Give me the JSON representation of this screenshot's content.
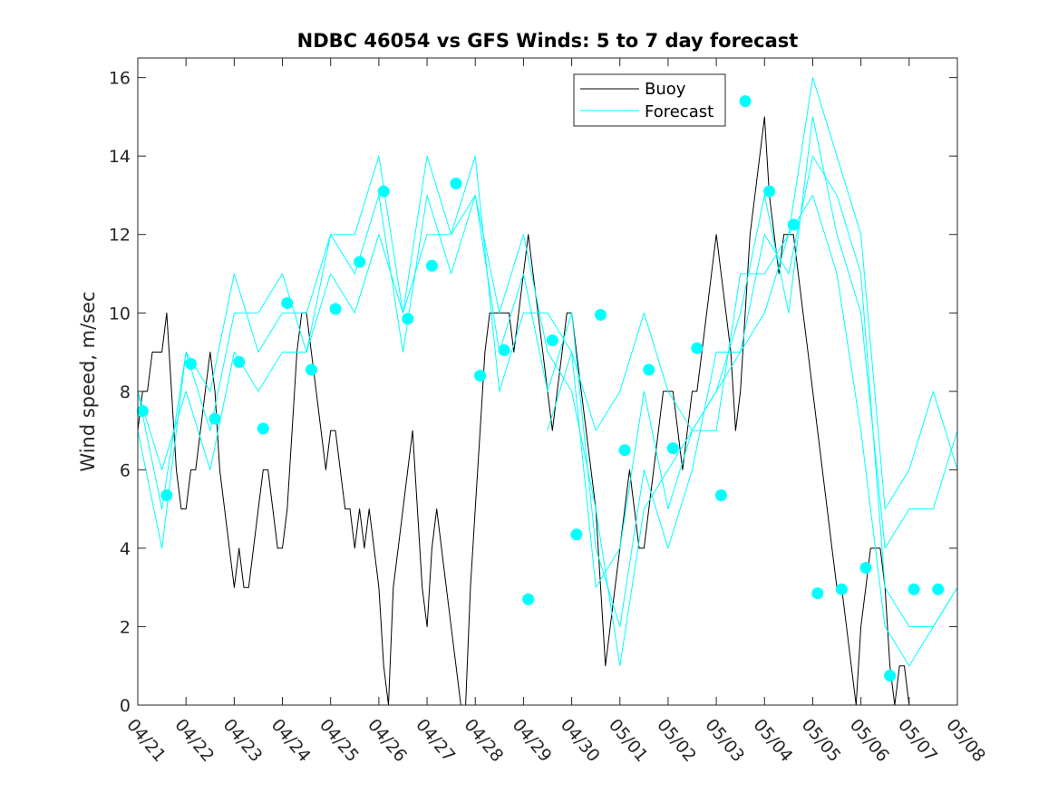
{
  "chart_data": {
    "type": "line",
    "title": "NDBC 46054 vs GFS Winds: 5 to 7 day forecast",
    "xlabel": "",
    "ylabel": "Wind speed, m/sec",
    "xlim": [
      0,
      17
    ],
    "ylim": [
      0,
      16.5
    ],
    "x_ticks": [
      0,
      1,
      2,
      3,
      4,
      5,
      6,
      7,
      8,
      9,
      10,
      11,
      12,
      13,
      14,
      15,
      16,
      17
    ],
    "x_tick_labels": [
      "04/21",
      "04/22",
      "04/23",
      "04/24",
      "04/25",
      "04/26",
      "04/27",
      "04/28",
      "04/29",
      "04/30",
      "05/01",
      "05/02",
      "05/03",
      "05/04",
      "05/05",
      "05/06",
      "05/07",
      "05/08"
    ],
    "y_ticks": [
      0,
      2,
      4,
      6,
      8,
      10,
      12,
      14,
      16
    ],
    "y_tick_labels": [
      "0",
      "2",
      "4",
      "6",
      "8",
      "10",
      "12",
      "14",
      "16"
    ],
    "grid": false,
    "legend": {
      "position": "top-right-inner",
      "entries": [
        "Buoy",
        "Forecast"
      ]
    },
    "colors": {
      "buoy": "#000000",
      "forecast": "#00ffff"
    },
    "series": [
      {
        "name": "Buoy",
        "x": [
          0,
          0.1,
          0.2,
          0.3,
          0.4,
          0.5,
          0.6,
          0.7,
          0.8,
          0.9,
          1.0,
          1.1,
          1.2,
          1.3,
          1.4,
          1.5,
          1.6,
          1.7,
          1.8,
          1.9,
          2.0,
          2.1,
          2.2,
          2.3,
          2.4,
          2.5,
          2.6,
          2.7,
          2.8,
          2.9,
          3.0,
          3.1,
          3.2,
          3.3,
          3.4,
          3.5,
          3.6,
          3.7,
          3.8,
          3.9,
          4.0,
          4.1,
          4.2,
          4.3,
          4.4,
          4.5,
          4.6,
          4.7,
          4.8,
          4.9,
          5.0,
          5.1,
          5.2,
          5.3,
          5.4,
          5.5,
          5.6,
          5.7,
          5.8,
          5.9,
          6.0,
          6.1,
          6.2,
          6.3,
          6.4,
          6.5,
          6.6,
          6.7,
          6.8,
          6.9,
          7.0,
          7.1,
          7.2,
          7.3,
          7.4,
          7.5,
          7.6,
          7.7,
          7.8,
          7.9,
          8.0,
          8.1,
          8.2,
          8.3,
          8.4,
          8.5,
          8.6,
          8.7,
          8.8,
          8.9,
          9.0,
          9.1,
          9.2,
          9.3,
          9.4,
          9.5,
          9.6,
          9.7,
          9.8,
          9.9,
          10.0,
          10.1,
          10.2,
          10.3,
          10.4,
          10.5,
          10.6,
          10.7,
          10.8,
          10.9,
          11.0,
          11.1,
          11.2,
          11.3,
          11.4,
          11.5,
          11.6,
          11.7,
          11.8,
          11.9,
          12.0,
          12.1,
          12.2,
          12.3,
          12.4,
          12.5,
          12.6,
          12.7,
          12.8,
          12.9,
          13.0,
          13.1,
          13.2,
          13.3,
          13.4,
          13.5,
          13.6,
          13.7,
          13.8,
          13.9,
          14.0,
          14.1,
          14.2,
          14.3,
          14.4,
          14.5,
          14.6,
          14.7,
          14.8,
          14.9,
          15.0,
          15.1,
          15.2,
          15.3,
          15.4,
          15.5,
          15.6,
          15.7,
          15.8,
          15.9,
          16.0,
          16.1,
          16.2,
          16.3,
          16.4
        ],
        "values": [
          7,
          8,
          8,
          9,
          9,
          9,
          10,
          8,
          6,
          5,
          5,
          6,
          6,
          7,
          8,
          9,
          8,
          6,
          5,
          4,
          3,
          4,
          3,
          3,
          4,
          5,
          6,
          6,
          5,
          4,
          4,
          5,
          7,
          9,
          10,
          10,
          9,
          8,
          7,
          6,
          7,
          7,
          6,
          5,
          5,
          4,
          5,
          4,
          5,
          4,
          3,
          1,
          0,
          3,
          4,
          5,
          6,
          7,
          5,
          3,
          2,
          4,
          5,
          4,
          3,
          2,
          1,
          0,
          0,
          3,
          5,
          7,
          9,
          10,
          10,
          10,
          10,
          10,
          9,
          10,
          11,
          12,
          11,
          10,
          9,
          8,
          7,
          8,
          9,
          10,
          10,
          9,
          8,
          7,
          6,
          5,
          3,
          1,
          2,
          3,
          4,
          5,
          6,
          5,
          4,
          4,
          5,
          6,
          7,
          8,
          8,
          8,
          7,
          6,
          7,
          8,
          8,
          9,
          10,
          11,
          12,
          11,
          10,
          9,
          7,
          8,
          10,
          12,
          13,
          14,
          15,
          13,
          12,
          11,
          12,
          12,
          12,
          11,
          10,
          9,
          8,
          7,
          6,
          5,
          4,
          3,
          3,
          2,
          1,
          0,
          2,
          3,
          4,
          4,
          4,
          3,
          1,
          0,
          1,
          1,
          0,
          0,
          0,
          0,
          0
        ]
      },
      {
        "name": "Forecast",
        "x": [
          0,
          0.5,
          1.0,
          1.5,
          2.0,
          2.5,
          3.0,
          3.5,
          4.0,
          4.5,
          5.0,
          5.5,
          6.0,
          6.5,
          7.0,
          7.5,
          8.0,
          8.5,
          9.0,
          9.5,
          10.0,
          10.5,
          11.0,
          11.5,
          12.0,
          12.5,
          13.0,
          13.5,
          14.0,
          14.5,
          15.0,
          15.5,
          16.0,
          16.5,
          17.0
        ],
        "values": [
          8,
          5,
          9,
          7,
          10,
          10,
          11,
          9,
          12,
          12,
          14,
          10,
          14,
          12,
          14,
          8,
          10,
          10,
          9,
          3,
          4,
          8,
          5,
          7,
          8,
          10,
          13,
          10,
          15,
          12,
          10,
          4,
          5,
          5,
          7
        ]
      },
      {
        "name": "",
        "x": [
          0,
          0.5,
          1.0,
          1.5,
          2.0,
          2.5,
          3.0,
          3.5,
          4.0,
          4.5,
          5.0,
          5.5,
          6.0,
          6.5,
          7.0,
          7.5,
          8.0,
          8.5,
          9.0,
          9.5,
          10.0,
          10.5,
          11.0,
          11.5,
          12.0,
          12.5,
          13.0,
          13.5,
          14.0,
          14.5,
          15.0,
          15.5,
          16.0,
          16.5,
          17.0
        ],
        "values": [
          7,
          4,
          9,
          8,
          11,
          9,
          10,
          10,
          12,
          11,
          13,
          9,
          13,
          11,
          13,
          9,
          11,
          8,
          10,
          4,
          2,
          6,
          4,
          6,
          9,
          9,
          12,
          11,
          14,
          13,
          11,
          3,
          2,
          2,
          3
        ]
      },
      {
        "name": "",
        "x": [
          0,
          0.5,
          1.0,
          1.5,
          2.0,
          2.5,
          3.0,
          3.5,
          4.0,
          4.5,
          5.0,
          5.5,
          6.0,
          6.5,
          7.0,
          7.5,
          8.0,
          8.5,
          9.0,
          9.5,
          10.0,
          10.5,
          11.0,
          11.5,
          12.0,
          12.5,
          13.0,
          13.5,
          14.0,
          14.5,
          15.0,
          15.5,
          16.0,
          16.5,
          17.0
        ],
        "values": [
          8,
          6,
          8,
          6,
          9,
          8,
          9,
          9,
          11,
          10,
          12,
          10,
          12,
          12,
          13,
          10,
          12,
          9,
          8,
          5,
          1,
          5,
          6,
          7,
          7,
          11,
          11,
          12,
          16,
          14,
          12,
          5,
          6,
          8,
          6
        ]
      },
      {
        "name": "",
        "x": [
          8.5,
          9.0,
          9.5,
          10.0,
          10.5,
          11.0,
          11.5,
          12.0,
          12.5,
          13.0,
          13.5,
          14.0,
          14.5,
          15.0,
          15.5,
          16.0,
          16.5,
          17.0
        ],
        "values": [
          7,
          9,
          7,
          8,
          10,
          8,
          7,
          8,
          9,
          10,
          12,
          13,
          11,
          7,
          2,
          1,
          2,
          3
        ]
      }
    ],
    "markers": {
      "name": "Forecast",
      "x": [
        0.1,
        0.6,
        1.1,
        1.6,
        2.1,
        2.6,
        3.1,
        3.6,
        4.1,
        4.6,
        5.1,
        5.6,
        6.1,
        6.6,
        7.1,
        7.6,
        8.1,
        8.6,
        9.1,
        9.6,
        10.1,
        10.6,
        11.1,
        11.6,
        12.1,
        12.6,
        13.1,
        13.6,
        14.1,
        14.6,
        15.1,
        15.6,
        16.1,
        16.6
      ],
      "values": [
        7.5,
        5.35,
        8.7,
        7.3,
        8.75,
        7.05,
        10.25,
        8.55,
        10.1,
        11.3,
        13.1,
        9.85,
        11.2,
        13.3,
        8.4,
        9.05,
        2.7,
        9.3,
        4.35,
        9.95,
        6.5,
        8.55,
        6.55,
        9.1,
        5.35,
        15.4,
        13.1,
        12.25,
        2.85,
        2.95,
        3.5,
        0.75,
        2.95,
        2.95
      ]
    }
  }
}
